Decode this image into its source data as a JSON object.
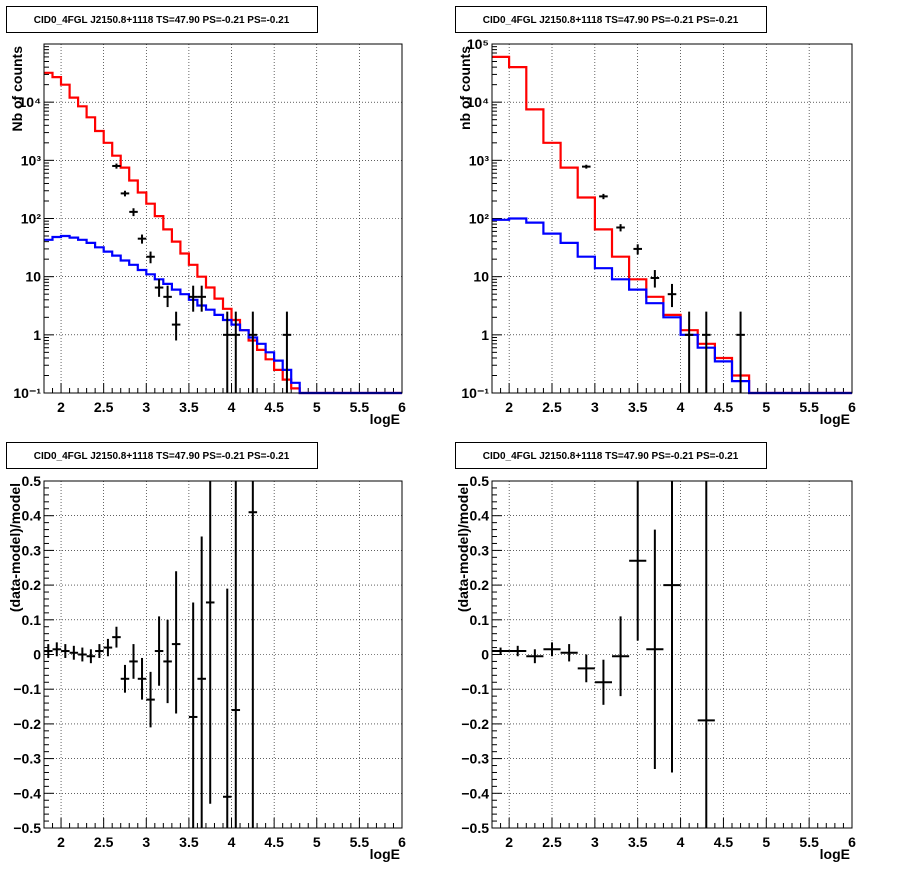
{
  "chart_data": [
    {
      "type": "step",
      "title": "CID0_4FGL J2150.8+1118 TS=47.90 PS=-0.21 PS=-0.21",
      "xlabel": "logE",
      "ylabel": "Nb of counts",
      "xlim": [
        1.8,
        6.0
      ],
      "ylim": [
        0.1,
        100000
      ],
      "yscale": "log",
      "grid": true,
      "x_ticks": [
        2,
        2.5,
        3,
        3.5,
        4,
        4.5,
        5,
        5.5,
        6
      ],
      "x_tick_labels": [
        "2",
        "2.5",
        "3",
        "3.5",
        "4",
        "4.5",
        "5",
        "5.5",
        "6"
      ],
      "y_ticks": [
        0.1,
        1,
        10,
        100,
        1000,
        10000
      ],
      "y_tick_labels": [
        "10⁻¹",
        "1",
        "10",
        "10²",
        "10³",
        "10⁴"
      ],
      "bin_edges": [
        1.8,
        1.9,
        2.0,
        2.1,
        2.2,
        2.3,
        2.4,
        2.5,
        2.6,
        2.7,
        2.8,
        2.9,
        3.0,
        3.1,
        3.2,
        3.3,
        3.4,
        3.5,
        3.6,
        3.7,
        3.8,
        3.9,
        4.0,
        4.1,
        4.2,
        4.3,
        4.4,
        4.5,
        4.6,
        4.7,
        4.8,
        4.9,
        5.0,
        5.1,
        5.2,
        5.3,
        5.4,
        5.5,
        5.6,
        5.7,
        5.8,
        5.9,
        6.0
      ],
      "series": [
        {
          "color": "#ff0000",
          "values": [
            32000,
            27000,
            20000,
            12000,
            8500,
            5500,
            3200,
            2000,
            1200,
            750,
            450,
            280,
            180,
            110,
            65,
            40,
            25,
            16,
            10,
            6.5,
            4.2,
            2.8,
            1.8,
            1.2,
            0.8,
            0.55,
            0.38,
            0.25,
            0.17,
            0.12,
            0.1,
            0.1,
            0.1,
            0.1,
            0.1,
            0.1,
            0.1,
            0.1,
            0.1,
            0.1,
            0.1,
            0.1
          ]
        },
        {
          "color": "#0000ff",
          "values": [
            43,
            48,
            50,
            47,
            43,
            38,
            32,
            27,
            23,
            19,
            16,
            13,
            11,
            9,
            7.5,
            6,
            5,
            4,
            3.2,
            2.7,
            2.2,
            1.8,
            1.5,
            1.2,
            0.9,
            0.7,
            0.5,
            0.36,
            0.25,
            0.15,
            0.1,
            0.1,
            0.1,
            0.1,
            0.1,
            0.1,
            0.1,
            0.1,
            0.1,
            0.1,
            0.1,
            0.1
          ]
        }
      ],
      "points": [
        {
          "x": 2.65,
          "y": 800,
          "ylo": 720,
          "yhi": 880
        },
        {
          "x": 2.75,
          "y": 270,
          "ylo": 240,
          "yhi": 300
        },
        {
          "x": 2.85,
          "y": 130,
          "ylo": 110,
          "yhi": 150
        },
        {
          "x": 2.95,
          "y": 45,
          "ylo": 37,
          "yhi": 53
        },
        {
          "x": 3.05,
          "y": 22,
          "ylo": 17,
          "yhi": 27
        },
        {
          "x": 3.15,
          "y": 6.5,
          "ylo": 4.5,
          "yhi": 9
        },
        {
          "x": 3.25,
          "y": 4.5,
          "ylo": 3,
          "yhi": 7
        },
        {
          "x": 3.35,
          "y": 1.5,
          "ylo": 0.8,
          "yhi": 2.5
        },
        {
          "x": 3.55,
          "y": 4.5,
          "ylo": 2.5,
          "yhi": 7
        },
        {
          "x": 3.65,
          "y": 4.5,
          "ylo": 2.5,
          "yhi": 7
        },
        {
          "x": 3.95,
          "y": 1,
          "ylo": 0.1,
          "yhi": 2.5
        },
        {
          "x": 4.05,
          "y": 1,
          "ylo": 0.1,
          "yhi": 2.5
        },
        {
          "x": 4.25,
          "y": 1,
          "ylo": 0.1,
          "yhi": 2.5
        },
        {
          "x": 4.65,
          "y": 1,
          "ylo": 0.1,
          "yhi": 2.5
        }
      ]
    },
    {
      "type": "step",
      "title": "CID0_4FGL J2150.8+1118 TS=47.90 PS=-0.21 PS=-0.21",
      "xlabel": "logE",
      "ylabel": "nb of counts",
      "xlim": [
        1.8,
        6.0
      ],
      "ylim": [
        0.1,
        100000
      ],
      "yscale": "log",
      "grid": true,
      "x_ticks": [
        2,
        2.5,
        3,
        3.5,
        4,
        4.5,
        5,
        5.5,
        6
      ],
      "x_tick_labels": [
        "2",
        "2.5",
        "3",
        "3.5",
        "4",
        "4.5",
        "5",
        "5.5",
        "6"
      ],
      "y_ticks": [
        0.1,
        1,
        10,
        100,
        1000,
        10000,
        100000
      ],
      "y_tick_labels": [
        "10⁻¹",
        "1",
        "10",
        "10²",
        "10³",
        "10⁴",
        "10⁵"
      ],
      "bin_edges": [
        1.8,
        2.0,
        2.2,
        2.4,
        2.6,
        2.8,
        3.0,
        3.2,
        3.4,
        3.6,
        3.8,
        4.0,
        4.2,
        4.4,
        4.6,
        4.8,
        5.0,
        5.2,
        5.4,
        5.6,
        5.8,
        6.0
      ],
      "series": [
        {
          "color": "#ff0000",
          "values": [
            60000,
            40000,
            7500,
            2000,
            750,
            230,
            65,
            22,
            9,
            4.5,
            2.2,
            1.2,
            0.7,
            0.4,
            0.2,
            0.1,
            0.1,
            0.1,
            0.1,
            0.1,
            0.1
          ]
        },
        {
          "color": "#0000ff",
          "values": [
            95,
            100,
            85,
            55,
            38,
            22,
            14,
            9,
            6,
            3.5,
            2,
            1,
            0.6,
            0.35,
            0.16,
            0.1,
            0.1,
            0.1,
            0.1,
            0.1,
            0.1
          ]
        }
      ],
      "points": [
        {
          "x": 2.9,
          "y": 780,
          "ylo": 720,
          "yhi": 840
        },
        {
          "x": 3.1,
          "y": 240,
          "ylo": 215,
          "yhi": 265
        },
        {
          "x": 3.3,
          "y": 70,
          "ylo": 60,
          "yhi": 80
        },
        {
          "x": 3.5,
          "y": 30,
          "ylo": 24,
          "yhi": 36
        },
        {
          "x": 3.7,
          "y": 9.5,
          "ylo": 6.5,
          "yhi": 13
        },
        {
          "x": 3.9,
          "y": 5,
          "ylo": 3,
          "yhi": 7.5
        },
        {
          "x": 4.1,
          "y": 1,
          "ylo": 0.1,
          "yhi": 2.5
        },
        {
          "x": 4.3,
          "y": 1,
          "ylo": 0.1,
          "yhi": 2.5
        },
        {
          "x": 4.7,
          "y": 1,
          "ylo": 0.1,
          "yhi": 2.5
        }
      ]
    },
    {
      "type": "scatter",
      "title": "CID0_4FGL J2150.8+1118 TS=47.90 PS=-0.21 PS=-0.21",
      "xlabel": "logE",
      "ylabel": "(data-model)/model",
      "xlim": [
        1.8,
        6.0
      ],
      "ylim": [
        -0.5,
        0.5
      ],
      "yscale": "linear",
      "grid": true,
      "x_ticks": [
        2,
        2.5,
        3,
        3.5,
        4,
        4.5,
        5,
        5.5,
        6
      ],
      "x_tick_labels": [
        "2",
        "2.5",
        "3",
        "3.5",
        "4",
        "4.5",
        "5",
        "5.5",
        "6"
      ],
      "y_ticks": [
        -0.5,
        -0.4,
        -0.3,
        -0.2,
        -0.1,
        0,
        0.1,
        0.2,
        0.3,
        0.4,
        0.5
      ],
      "y_tick_labels": [
        "−0.5",
        "−0.4",
        "−0.3",
        "−0.2",
        "−0.1",
        "0",
        "0.1",
        "0.2",
        "0.3",
        "0.4",
        "0.5"
      ],
      "xerr": 0.05,
      "points": [
        {
          "x": 1.85,
          "y": 0.01,
          "ylo": -0.01,
          "yhi": 0.03
        },
        {
          "x": 1.95,
          "y": 0.015,
          "ylo": -0.005,
          "yhi": 0.035
        },
        {
          "x": 2.05,
          "y": 0.01,
          "ylo": -0.01,
          "yhi": 0.03
        },
        {
          "x": 2.15,
          "y": 0.005,
          "ylo": -0.015,
          "yhi": 0.025
        },
        {
          "x": 2.25,
          "y": 0.0,
          "ylo": -0.02,
          "yhi": 0.02
        },
        {
          "x": 2.35,
          "y": -0.005,
          "ylo": -0.025,
          "yhi": 0.015
        },
        {
          "x": 2.45,
          "y": 0.01,
          "ylo": -0.01,
          "yhi": 0.03
        },
        {
          "x": 2.55,
          "y": 0.02,
          "ylo": -0.005,
          "yhi": 0.045
        },
        {
          "x": 2.65,
          "y": 0.05,
          "ylo": 0.02,
          "yhi": 0.08
        },
        {
          "x": 2.75,
          "y": -0.07,
          "ylo": -0.11,
          "yhi": -0.03
        },
        {
          "x": 2.85,
          "y": -0.02,
          "ylo": -0.07,
          "yhi": 0.03
        },
        {
          "x": 2.95,
          "y": -0.07,
          "ylo": -0.13,
          "yhi": -0.01
        },
        {
          "x": 3.05,
          "y": -0.13,
          "ylo": -0.21,
          "yhi": -0.05
        },
        {
          "x": 3.15,
          "y": 0.01,
          "ylo": -0.09,
          "yhi": 0.11
        },
        {
          "x": 3.25,
          "y": -0.02,
          "ylo": -0.14,
          "yhi": 0.1
        },
        {
          "x": 3.35,
          "y": 0.03,
          "ylo": -0.17,
          "yhi": 0.24
        },
        {
          "x": 3.55,
          "y": -0.18,
          "ylo": -0.5,
          "yhi": 0.15
        },
        {
          "x": 3.65,
          "y": -0.07,
          "ylo": -0.5,
          "yhi": 0.34
        },
        {
          "x": 3.75,
          "y": 0.15,
          "ylo": -0.43,
          "yhi": 0.5
        },
        {
          "x": 3.95,
          "y": -0.41,
          "ylo": -0.5,
          "yhi": 0.19
        },
        {
          "x": 4.05,
          "y": -0.16,
          "ylo": -0.5,
          "yhi": 0.5
        },
        {
          "x": 4.25,
          "y": 0.41,
          "ylo": -0.5,
          "yhi": 0.5
        }
      ]
    },
    {
      "type": "scatter",
      "title": "CID0_4FGL J2150.8+1118 TS=47.90 PS=-0.21 PS=-0.21",
      "xlabel": "logE",
      "ylabel": "(data-model)/model",
      "xlim": [
        1.8,
        6.0
      ],
      "ylim": [
        -0.5,
        0.5
      ],
      "yscale": "linear",
      "grid": true,
      "x_ticks": [
        2,
        2.5,
        3,
        3.5,
        4,
        4.5,
        5,
        5.5,
        6
      ],
      "x_tick_labels": [
        "2",
        "2.5",
        "3",
        "3.5",
        "4",
        "4.5",
        "5",
        "5.5",
        "6"
      ],
      "y_ticks": [
        -0.5,
        -0.4,
        -0.3,
        -0.2,
        -0.1,
        0,
        0.1,
        0.2,
        0.3,
        0.4,
        0.5
      ],
      "y_tick_labels": [
        "−0.5",
        "−0.4",
        "−0.3",
        "−0.2",
        "−0.1",
        "0",
        "0.1",
        "0.2",
        "0.3",
        "0.4",
        "0.5"
      ],
      "xerr": 0.1,
      "points": [
        {
          "x": 1.9,
          "y": 0.01,
          "ylo": 0.0,
          "yhi": 0.02
        },
        {
          "x": 2.1,
          "y": 0.01,
          "ylo": -0.005,
          "yhi": 0.025
        },
        {
          "x": 2.3,
          "y": -0.005,
          "ylo": -0.025,
          "yhi": 0.015
        },
        {
          "x": 2.5,
          "y": 0.015,
          "ylo": -0.005,
          "yhi": 0.035
        },
        {
          "x": 2.7,
          "y": 0.005,
          "ylo": -0.02,
          "yhi": 0.03
        },
        {
          "x": 2.9,
          "y": -0.04,
          "ylo": -0.08,
          "yhi": 0.0
        },
        {
          "x": 3.1,
          "y": -0.08,
          "ylo": -0.145,
          "yhi": -0.015
        },
        {
          "x": 3.3,
          "y": -0.005,
          "ylo": -0.12,
          "yhi": 0.11
        },
        {
          "x": 3.5,
          "y": 0.27,
          "ylo": 0.04,
          "yhi": 0.5
        },
        {
          "x": 3.7,
          "y": 0.015,
          "ylo": -0.33,
          "yhi": 0.36
        },
        {
          "x": 3.9,
          "y": 0.2,
          "ylo": -0.34,
          "yhi": 0.5
        },
        {
          "x": 4.3,
          "y": -0.19,
          "ylo": -0.5,
          "yhi": 0.5
        }
      ]
    }
  ]
}
